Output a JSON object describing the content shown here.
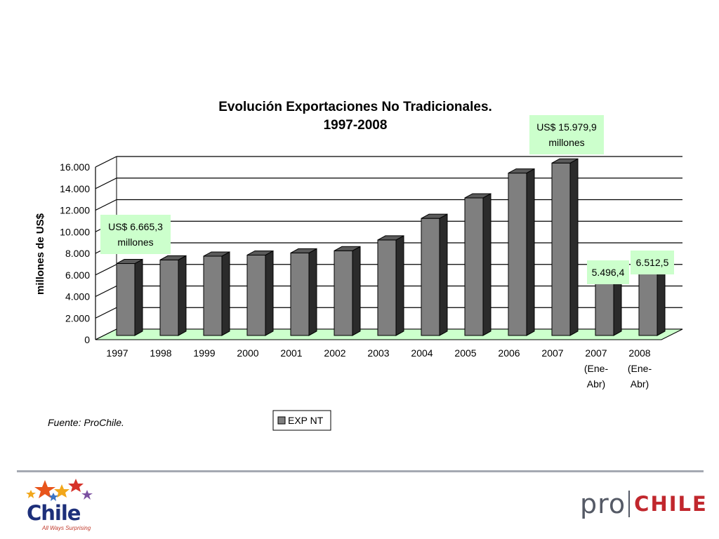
{
  "chart_data": {
    "type": "bar",
    "title": [
      "Evolución Exportaciones No Tradicionales.",
      "1997-2008"
    ],
    "ylabel": "millones de US$",
    "xlabel": "",
    "ylim": [
      0,
      16000
    ],
    "yticks": [
      0,
      2000,
      4000,
      6000,
      8000,
      10000,
      12000,
      14000,
      16000
    ],
    "ytick_labels": [
      "0",
      "2.000",
      "4.000",
      "6.000",
      "8.000",
      "10.000",
      "12.000",
      "14.000",
      "16.000"
    ],
    "categories": [
      [
        "1997"
      ],
      [
        "1998"
      ],
      [
        "1999"
      ],
      [
        "2000"
      ],
      [
        "2001"
      ],
      [
        "2002"
      ],
      [
        "2003"
      ],
      [
        "2004"
      ],
      [
        "2005"
      ],
      [
        "2006"
      ],
      [
        "2007"
      ],
      [
        "2007",
        "(Ene-",
        "Abr)"
      ],
      [
        "2008",
        "(Ene-",
        "Abr)"
      ]
    ],
    "series": [
      {
        "name": "EXP NT",
        "values": [
          6665.3,
          7000,
          7350,
          7450,
          7650,
          7850,
          8850,
          10850,
          12750,
          15050,
          15979.9,
          5496.4,
          6512.5
        ]
      }
    ],
    "grid": true,
    "legend_position": "bottom",
    "callouts": [
      {
        "lines": [
          "US$ 6.665,3",
          "millones"
        ],
        "bar_index": 0
      },
      {
        "lines": [
          "US$ 15.979,9",
          "millones"
        ],
        "bar_index": 10
      },
      {
        "lines": [
          "5.496,4"
        ],
        "bar_index": 11
      },
      {
        "lines": [
          "6.512,5"
        ],
        "bar_index": 12
      }
    ],
    "colors": {
      "bar_front": "#7f7f7f",
      "bar_side": "#2b2b2b",
      "bar_top": "#5a5a5a",
      "floor": "#ccffcc",
      "callout": "#ccffcc"
    }
  },
  "source_note": "Fuente: ProChile.",
  "logos": {
    "left_word": "Chile",
    "left_tagline": "All Ways Surprising",
    "right_pro": "pro",
    "right_chile": "CHILE"
  }
}
